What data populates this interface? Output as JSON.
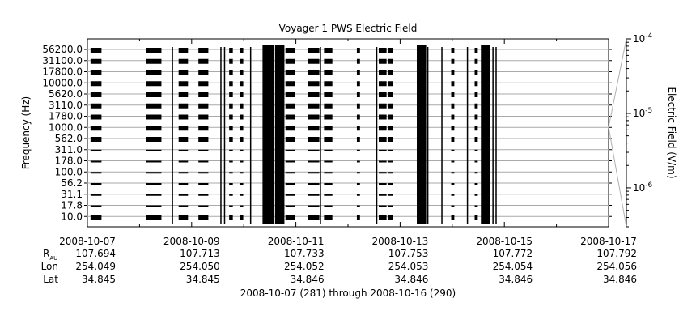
{
  "chart_data": {
    "type": "heatmap",
    "title": "Voyager 1 PWS Electric Field",
    "ylabel": "Frequency (Hz)",
    "colorbar_label": "Electric Field (V/m)",
    "colorbar_ticks": [
      {
        "value": 0.0001,
        "label": "10",
        "exp": "-4"
      },
      {
        "value": 1e-05,
        "label": "10",
        "exp": "-5"
      },
      {
        "value": 1e-06,
        "label": "10",
        "exp": "-6"
      }
    ],
    "colorbar_range": [
      3e-07,
      0.0001
    ],
    "frequency_channels": [
      "56200.0",
      "31100.0",
      "17800.0",
      "10000.0",
      "5620.0",
      "3110.0",
      "1780.0",
      "1000.0",
      "562.0",
      "311.0",
      "178.0",
      "100.0",
      "56.2",
      "31.1",
      "17.8",
      "10.0"
    ],
    "x_tick_labels": [
      "2008-10-07",
      "2008-10-09",
      "2008-10-11",
      "2008-10-13",
      "2008-10-15",
      "2008-10-17"
    ],
    "x_range_days": [
      0,
      10
    ],
    "ephemeris_labels": {
      "r_main": "R",
      "r_sub": "AU",
      "lon": "Lon",
      "lat": "Lat"
    },
    "ephemeris": {
      "r": [
        "107.694",
        "107.713",
        "107.733",
        "107.753",
        "107.772",
        "107.792"
      ],
      "lon": [
        "254.049",
        "254.050",
        "254.052",
        "254.053",
        "254.054",
        "254.056"
      ],
      "lat": [
        "34.845",
        "34.845",
        "34.846",
        "34.846",
        "34.846",
        "34.846"
      ]
    },
    "footer": "2008-10-07 (281) through 2008-10-16 (290)",
    "data_blocks": [
      {
        "start": 0.06,
        "end": 0.27,
        "kind": "block"
      },
      {
        "start": 1.12,
        "end": 1.42,
        "kind": "block"
      },
      {
        "start": 1.62,
        "end": 1.64,
        "kind": "line"
      },
      {
        "start": 1.75,
        "end": 1.93,
        "kind": "block"
      },
      {
        "start": 2.13,
        "end": 2.32,
        "kind": "block"
      },
      {
        "start": 2.55,
        "end": 2.57,
        "kind": "line"
      },
      {
        "start": 2.62,
        "end": 2.64,
        "kind": "line"
      },
      {
        "start": 2.72,
        "end": 2.79,
        "kind": "block"
      },
      {
        "start": 2.92,
        "end": 2.99,
        "kind": "block"
      },
      {
        "start": 3.12,
        "end": 3.14,
        "kind": "line"
      },
      {
        "start": 3.36,
        "end": 3.58,
        "kind": "dense"
      },
      {
        "start": 3.6,
        "end": 3.78,
        "kind": "dense"
      },
      {
        "start": 3.8,
        "end": 3.98,
        "kind": "block"
      },
      {
        "start": 4.23,
        "end": 4.45,
        "kind": "block"
      },
      {
        "start": 4.46,
        "end": 4.48,
        "kind": "line"
      },
      {
        "start": 4.54,
        "end": 4.7,
        "kind": "block"
      },
      {
        "start": 5.17,
        "end": 5.23,
        "kind": "block"
      },
      {
        "start": 5.54,
        "end": 5.56,
        "kind": "line"
      },
      {
        "start": 5.59,
        "end": 5.74,
        "kind": "block"
      },
      {
        "start": 5.76,
        "end": 5.86,
        "kind": "block"
      },
      {
        "start": 6.32,
        "end": 6.5,
        "kind": "dense"
      },
      {
        "start": 6.52,
        "end": 6.54,
        "kind": "line"
      },
      {
        "start": 6.79,
        "end": 6.81,
        "kind": "line"
      },
      {
        "start": 6.98,
        "end": 7.04,
        "kind": "block"
      },
      {
        "start": 7.28,
        "end": 7.3,
        "kind": "line"
      },
      {
        "start": 7.43,
        "end": 7.49,
        "kind": "block"
      },
      {
        "start": 7.55,
        "end": 7.72,
        "kind": "dense"
      },
      {
        "start": 7.77,
        "end": 7.79,
        "kind": "line"
      },
      {
        "start": 7.83,
        "end": 7.85,
        "kind": "line"
      }
    ]
  }
}
